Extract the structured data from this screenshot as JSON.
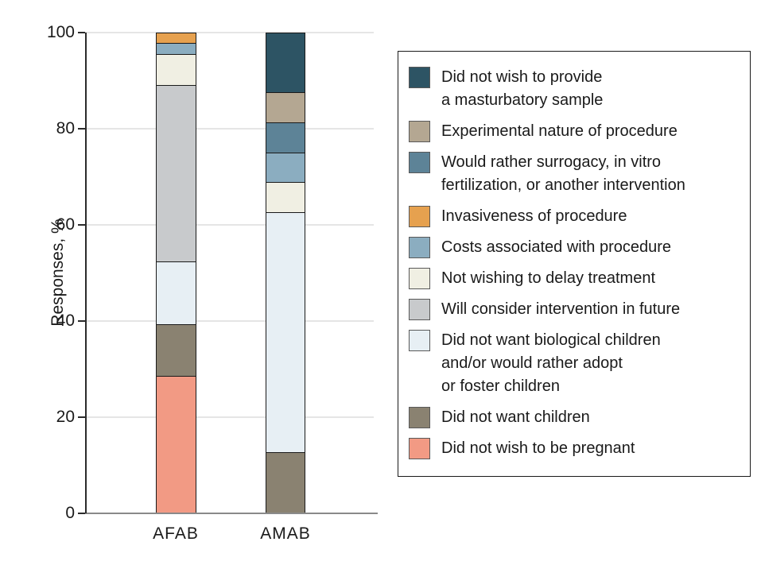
{
  "figure": {
    "y_axis_title": "Responses, %",
    "x_labels": [
      "AFAB",
      "AMAB"
    ],
    "y_tick_labels": [
      "0",
      "20",
      "40",
      "60",
      "80",
      "100"
    ]
  },
  "chart_data": {
    "type": "bar",
    "subtype": "stacked-vertical",
    "title": "",
    "xlabel": "",
    "ylabel": "Responses, %",
    "categories": [
      "AFAB",
      "AMAB"
    ],
    "ylim": [
      0,
      100
    ],
    "yticks": [
      0,
      20,
      40,
      60,
      80,
      100
    ],
    "grid": true,
    "legend_position": "right",
    "series": [
      {
        "name": "Did not wish to provide a masturbatory sample",
        "label_lines": [
          "Did not wish to provide",
          "a masturbatory sample"
        ],
        "color": "#2D5464",
        "values": [
          0,
          12.5
        ]
      },
      {
        "name": "Experimental nature of procedure",
        "label_lines": [
          "Experimental nature of procedure"
        ],
        "color": "#B4A792",
        "values": [
          0,
          6.25
        ]
      },
      {
        "name": "Would rather surrogacy, in vitro fertilization, or another intervention",
        "label_lines": [
          "Would rather surrogacy, in vitro",
          "fertilization, or another intervention"
        ],
        "color": "#5D8397",
        "values": [
          0,
          6.25
        ]
      },
      {
        "name": "Invasiveness of procedure",
        "label_lines": [
          "Invasiveness of procedure"
        ],
        "color": "#E6A14F",
        "values": [
          2.2,
          0
        ]
      },
      {
        "name": "Costs associated with procedure",
        "label_lines": [
          "Costs associated with procedure"
        ],
        "color": "#8BADC0",
        "values": [
          2.2,
          6.25
        ]
      },
      {
        "name": "Not wishing to delay treatment",
        "label_lines": [
          "Not wishing to delay treatment"
        ],
        "color": "#F0EFE3",
        "values": [
          6.5,
          6.25
        ]
      },
      {
        "name": "Will consider intervention in future",
        "label_lines": [
          "Will consider intervention in future"
        ],
        "color": "#C8CACC",
        "values": [
          36.9,
          0
        ]
      },
      {
        "name": "Did not want biological children and/or would rather adopt or foster children",
        "label_lines": [
          "Did not want biological children",
          "and/or would rather adopt",
          "or foster children"
        ],
        "color": "#E7EFF4",
        "values": [
          13.0,
          50
        ]
      },
      {
        "name": "Did not want children",
        "label_lines": [
          "Did not want children"
        ],
        "color": "#8A8271",
        "values": [
          10.9,
          12.5
        ]
      },
      {
        "name": "Did not wish to be pregnant",
        "label_lines": [
          "Did not wish to be pregnant"
        ],
        "color": "#F29A84",
        "values": [
          28.3,
          0
        ]
      }
    ]
  },
  "colors": {
    "axis_line": "#2b2b2b",
    "baseline": "#8a8a8a",
    "gridline": "#e5e5e5",
    "bar_border": "#1a1a1a",
    "text": "#1a1a1a",
    "legend_border": "#1a1a1a",
    "swatch_border": "#595959",
    "background": "#ffffff"
  }
}
